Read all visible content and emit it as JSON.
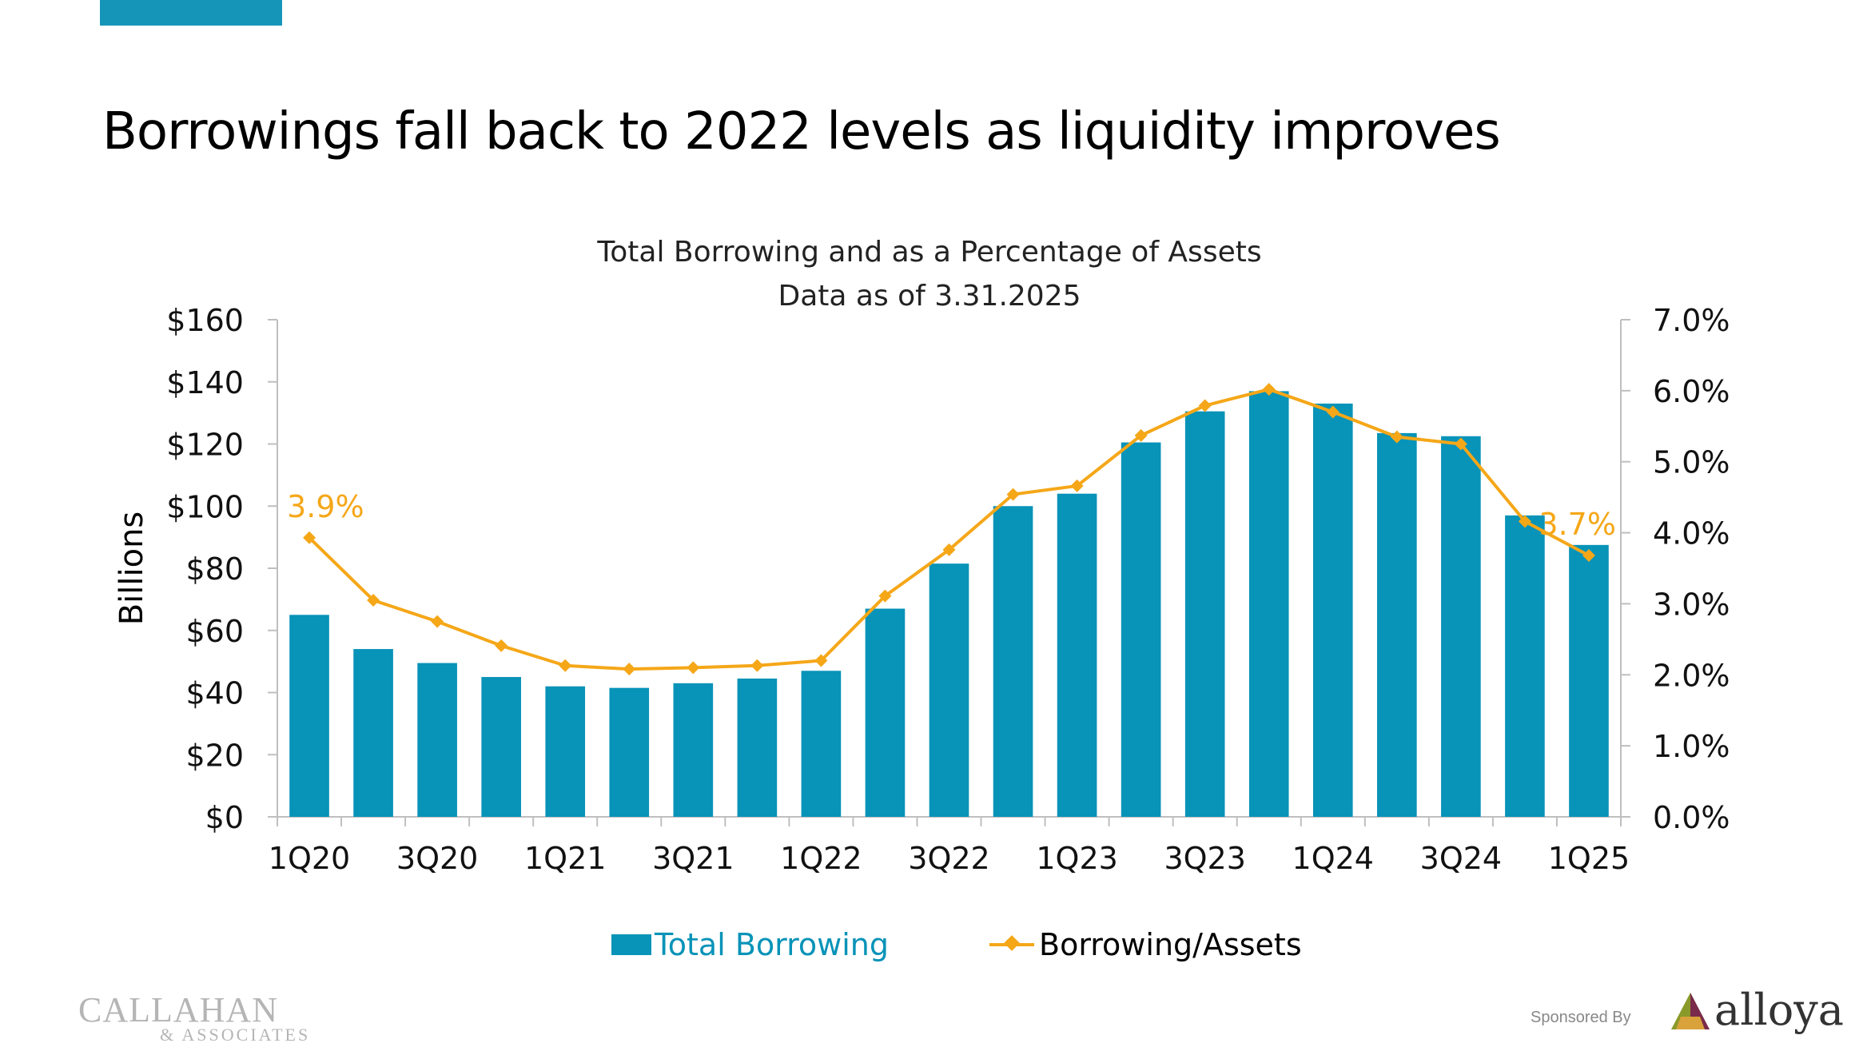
{
  "slide": {
    "title": "Borrowings fall back to 2022 levels as liquidity improves",
    "accent_color": "#1596b8"
  },
  "chart_data": {
    "type": "bar",
    "title": "Total Borrowing and as a Percentage of Assets",
    "subtitle": "Data as of 3.31.2025",
    "ylabel": "Billions",
    "y2label": "",
    "categories": [
      "1Q20",
      "2Q20",
      "3Q20",
      "4Q20",
      "1Q21",
      "2Q21",
      "3Q21",
      "4Q21",
      "1Q22",
      "2Q22",
      "3Q22",
      "4Q22",
      "1Q23",
      "2Q23",
      "3Q23",
      "4Q23",
      "1Q24",
      "2Q24",
      "3Q24",
      "4Q24",
      "1Q25"
    ],
    "x_tick_labels": [
      "1Q20",
      "3Q20",
      "1Q21",
      "3Q21",
      "1Q22",
      "3Q22",
      "1Q23",
      "3Q23",
      "1Q24",
      "3Q24",
      "1Q25"
    ],
    "ylim": [
      0,
      160
    ],
    "y_ticks": [
      "$0",
      "$20",
      "$40",
      "$60",
      "$80",
      "$100",
      "$120",
      "$140",
      "$160"
    ],
    "y2lim": [
      0.0,
      7.0
    ],
    "y2_ticks": [
      "0.0%",
      "1.0%",
      "2.0%",
      "3.0%",
      "4.0%",
      "5.0%",
      "6.0%",
      "7.0%"
    ],
    "series": [
      {
        "name": "Total Borrowing",
        "type": "bar",
        "axis": "left",
        "color": "#0893b8",
        "values": [
          65,
          54,
          49.5,
          45,
          42,
          41.5,
          43,
          44.5,
          47,
          67,
          81.5,
          100,
          104,
          120.5,
          130.5,
          137,
          133,
          123.5,
          122.5,
          97,
          87.5
        ]
      },
      {
        "name": "Borrowing/Assets",
        "type": "line",
        "axis": "right",
        "color": "#f5a718",
        "marker": "diamond",
        "values": [
          3.93,
          3.05,
          2.75,
          2.41,
          2.13,
          2.08,
          2.1,
          2.13,
          2.2,
          3.11,
          3.76,
          4.54,
          4.66,
          5.37,
          5.79,
          6.02,
          5.7,
          5.35,
          5.25,
          4.16,
          3.68
        ]
      }
    ],
    "data_labels": [
      {
        "series": 1,
        "index": 0,
        "text": "3.9%"
      },
      {
        "series": 1,
        "index": 20,
        "text": "3.7%"
      }
    ],
    "grid": false,
    "legend_position": "bottom"
  },
  "footer": {
    "brand_main": "CALLAHAN",
    "brand_sub": "& ASSOCIATES",
    "sponsored_label": "Sponsored By",
    "sponsor_name": "alloya"
  }
}
